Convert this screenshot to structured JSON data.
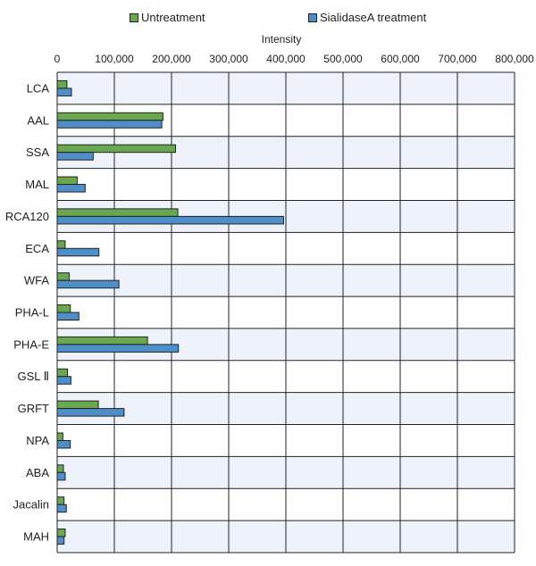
{
  "chart_data": {
    "type": "bar",
    "orientation": "horizontal",
    "categories": [
      "LCA",
      "AAL",
      "SSA",
      "MAL",
      "RCA120",
      "ECA",
      "WFA",
      "PHA-L",
      "PHA-E",
      "GSL Ⅱ",
      "GRFT",
      "NPA",
      "ABA",
      "Jacalin",
      "MAH"
    ],
    "series": [
      {
        "name": "Untreatment",
        "color": "#6aa84f",
        "values": [
          17000,
          185000,
          207000,
          35000,
          211000,
          14000,
          21000,
          23000,
          158000,
          18000,
          72000,
          10000,
          11000,
          12000,
          14000
        ]
      },
      {
        "name": "SialidaseA treatment",
        "color": "#4f8fc9",
        "values": [
          25000,
          183000,
          63000,
          49000,
          396000,
          73000,
          108000,
          38000,
          212000,
          24000,
          117000,
          23000,
          14000,
          16000,
          12000
        ]
      }
    ],
    "xlabel": "Intensity",
    "xlim": [
      0,
      800000
    ],
    "xticks": [
      "0",
      "100,000",
      "200,000",
      "300,000",
      "400,000",
      "500,000",
      "600,000",
      "700,000",
      "800,000"
    ],
    "grid": true,
    "legend_position": "top"
  }
}
